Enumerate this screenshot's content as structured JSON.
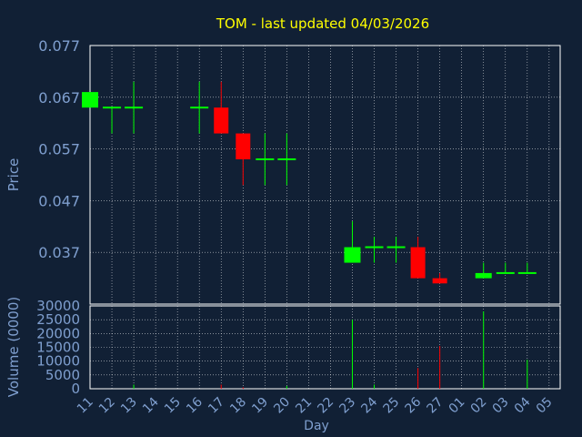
{
  "chart_data": {
    "type": "candlestick",
    "title": "TOM - last updated 04/03/2026",
    "xlabel": "Day",
    "ylabel": "Price",
    "volume_label": "Volume (0000)",
    "price_ticks": [
      "0.077",
      "0.067",
      "0.057",
      "0.047",
      "0.037"
    ],
    "volume_ticks": [
      "30000",
      "25000",
      "20000",
      "15000",
      "10000",
      "5000",
      "0"
    ],
    "ylim": [
      0.027,
      0.077
    ],
    "volume_ylim": [
      0,
      30000
    ],
    "days": [
      "11",
      "12",
      "13",
      "14",
      "15",
      "16",
      "17",
      "18",
      "19",
      "20",
      "21",
      "22",
      "23",
      "24",
      "25",
      "26",
      "27",
      "01",
      "02",
      "03",
      "04",
      "05"
    ],
    "grid": true,
    "colors": {
      "background": "#112035",
      "title": "#ffff00",
      "axis_text": "#7f9fcf",
      "up": "#00ff00",
      "down": "#ff0000",
      "frame": "#ffffff",
      "grid": "#ffffff"
    },
    "candles": [
      {
        "day": "11",
        "open": 0.065,
        "high": 0.068,
        "low": 0.065,
        "close": 0.068,
        "volume": 0
      },
      {
        "day": "12",
        "open": 0.065,
        "high": 0.065,
        "low": 0.06,
        "close": 0.065,
        "volume": 0
      },
      {
        "day": "13",
        "open": 0.065,
        "high": 0.07,
        "low": 0.06,
        "close": 0.065,
        "volume": 1500
      },
      {
        "day": "16",
        "open": 0.065,
        "high": 0.07,
        "low": 0.06,
        "close": 0.065,
        "volume": 0
      },
      {
        "day": "17",
        "open": 0.065,
        "high": 0.07,
        "low": 0.06,
        "close": 0.06,
        "volume": 1500
      },
      {
        "day": "18",
        "open": 0.06,
        "high": 0.06,
        "low": 0.05,
        "close": 0.055,
        "volume": 500
      },
      {
        "day": "19",
        "open": 0.055,
        "high": 0.06,
        "low": 0.05,
        "close": 0.055,
        "volume": 0
      },
      {
        "day": "20",
        "open": 0.055,
        "high": 0.06,
        "low": 0.05,
        "close": 0.055,
        "volume": 1000
      },
      {
        "day": "23",
        "open": 0.035,
        "high": 0.043,
        "low": 0.035,
        "close": 0.038,
        "volume": 25000
      },
      {
        "day": "24",
        "open": 0.038,
        "high": 0.04,
        "low": 0.035,
        "close": 0.038,
        "volume": 1500
      },
      {
        "day": "25",
        "open": 0.038,
        "high": 0.04,
        "low": 0.035,
        "close": 0.038,
        "volume": 0
      },
      {
        "day": "26",
        "open": 0.038,
        "high": 0.04,
        "low": 0.032,
        "close": 0.032,
        "volume": 7500
      },
      {
        "day": "27",
        "open": 0.032,
        "high": 0.033,
        "low": 0.031,
        "close": 0.031,
        "volume": 15500
      },
      {
        "day": "02",
        "open": 0.032,
        "high": 0.035,
        "low": 0.032,
        "close": 0.033,
        "volume": 28000
      },
      {
        "day": "03",
        "open": 0.033,
        "high": 0.035,
        "low": 0.033,
        "close": 0.033,
        "volume": 0
      },
      {
        "day": "04",
        "open": 0.033,
        "high": 0.035,
        "low": 0.033,
        "close": 0.033,
        "volume": 10500
      }
    ]
  }
}
